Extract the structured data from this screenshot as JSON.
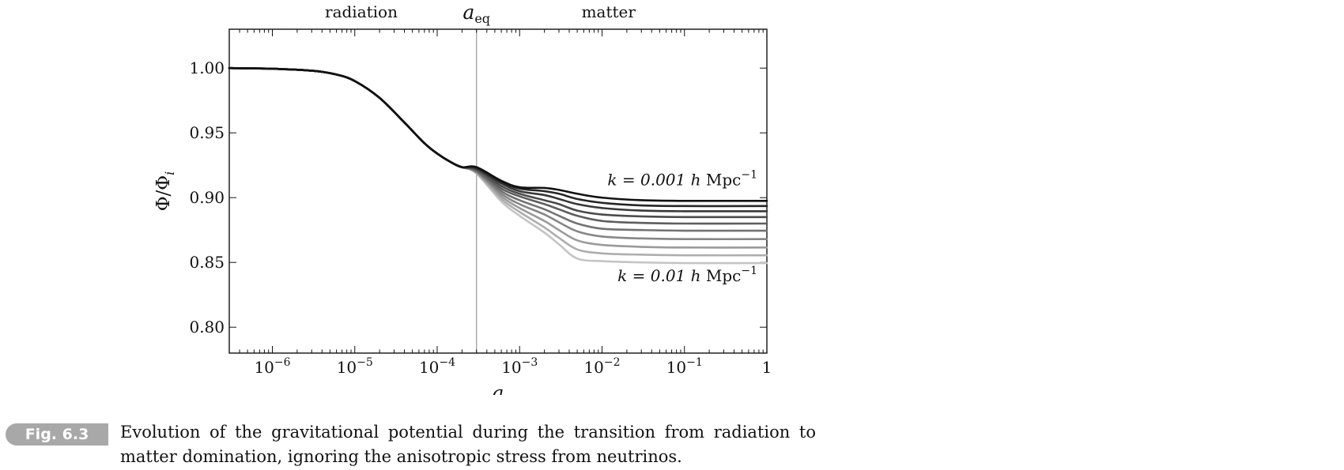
{
  "chart_data": {
    "type": "line",
    "x_scale": "log",
    "xlim": [
      3e-07,
      1
    ],
    "ylim": [
      0.78,
      1.03
    ],
    "xlabel": "a",
    "ylabel": "Φ/Φ_i",
    "x_ticks": [
      {
        "value": 1e-06,
        "base": "10",
        "exp": "−6"
      },
      {
        "value": 1e-05,
        "base": "10",
        "exp": "−5"
      },
      {
        "value": 0.0001,
        "base": "10",
        "exp": "−4"
      },
      {
        "value": 0.001,
        "base": "10",
        "exp": "−3"
      },
      {
        "value": 0.01,
        "base": "10",
        "exp": "−2"
      },
      {
        "value": 0.1,
        "base": "10",
        "exp": "−1"
      },
      {
        "value": 1,
        "base": "1",
        "exp": ""
      }
    ],
    "y_ticks": [
      {
        "value": 0.8,
        "label": "0.80"
      },
      {
        "value": 0.85,
        "label": "0.85"
      },
      {
        "value": 0.9,
        "label": "0.90"
      },
      {
        "value": 0.95,
        "label": "0.95"
      },
      {
        "value": 1.0,
        "label": "1.00"
      }
    ],
    "top_labels": {
      "radiation": {
        "text": "radiation",
        "x": 1.2e-05
      },
      "matter": {
        "text": "matter",
        "x": 0.012
      },
      "a_eq": {
        "base": "a",
        "sub": "eq",
        "x": 0.0003
      }
    },
    "vertical_line": {
      "x": 0.0003,
      "color": "#9a9a9a"
    },
    "annotations": {
      "top": {
        "lhs": "k = 0.001 ",
        "h": "h",
        "unit": "Mpc",
        "exp": "−1",
        "x": 0.11,
        "y": 0.9095
      },
      "bottom": {
        "lhs": "k = 0.01 ",
        "h": "h",
        "unit": "Mpc",
        "exp": "−1",
        "x": 0.11,
        "y": 0.8355
      }
    },
    "shared_curve": {
      "x": [
        3e-07,
        1e-06,
        3e-06,
        6e-06,
        1e-05,
        2e-05,
        4e-05,
        7e-05,
        0.0001,
        0.00015,
        0.0002,
        0.0003
      ],
      "y": [
        1.0,
        0.9995,
        0.998,
        0.995,
        0.99,
        0.977,
        0.958,
        0.942,
        0.934,
        0.927,
        0.9235,
        0.92
      ]
    },
    "series": [
      {
        "color": "#111111",
        "x": [
          0.0003,
          0.0006,
          0.001,
          0.002,
          0.003,
          0.005,
          0.01,
          0.03,
          0.1,
          1
        ],
        "y": [
          0.9235,
          0.913,
          0.908,
          0.9075,
          0.906,
          0.903,
          0.9,
          0.898,
          0.8975,
          0.8975
        ]
      },
      {
        "color": "#262626",
        "x": [
          0.0003,
          0.0006,
          0.001,
          0.002,
          0.003,
          0.005,
          0.01,
          0.03,
          0.1,
          1
        ],
        "y": [
          0.923,
          0.912,
          0.907,
          0.905,
          0.903,
          0.899,
          0.896,
          0.894,
          0.8935,
          0.8935
        ]
      },
      {
        "color": "#383838",
        "x": [
          0.0003,
          0.0006,
          0.001,
          0.002,
          0.003,
          0.005,
          0.01,
          0.03,
          0.1,
          1
        ],
        "y": [
          0.9225,
          0.911,
          0.905,
          0.902,
          0.899,
          0.895,
          0.892,
          0.89,
          0.8895,
          0.8895
        ]
      },
      {
        "color": "#4b4b4b",
        "x": [
          0.0003,
          0.0006,
          0.001,
          0.002,
          0.003,
          0.005,
          0.01,
          0.03,
          0.1,
          1
        ],
        "y": [
          0.922,
          0.909,
          0.903,
          0.898,
          0.895,
          0.89,
          0.887,
          0.8855,
          0.885,
          0.885
        ]
      },
      {
        "color": "#5e5e5e",
        "x": [
          0.0003,
          0.0006,
          0.001,
          0.002,
          0.003,
          0.005,
          0.01,
          0.03,
          0.1,
          1
        ],
        "y": [
          0.921,
          0.907,
          0.901,
          0.895,
          0.891,
          0.886,
          0.882,
          0.8805,
          0.88,
          0.88
        ]
      },
      {
        "color": "#727272",
        "x": [
          0.0003,
          0.0006,
          0.001,
          0.002,
          0.003,
          0.005,
          0.01,
          0.03,
          0.1,
          1
        ],
        "y": [
          0.9205,
          0.905,
          0.898,
          0.891,
          0.886,
          0.88,
          0.876,
          0.875,
          0.8745,
          0.8745
        ]
      },
      {
        "color": "#868686",
        "x": [
          0.0003,
          0.0006,
          0.001,
          0.002,
          0.003,
          0.005,
          0.01,
          0.03,
          0.1,
          1
        ],
        "y": [
          0.92,
          0.903,
          0.895,
          0.887,
          0.881,
          0.874,
          0.87,
          0.8685,
          0.868,
          0.868
        ]
      },
      {
        "color": "#9a9a9a",
        "x": [
          0.0003,
          0.0006,
          0.001,
          0.002,
          0.003,
          0.005,
          0.01,
          0.03,
          0.1,
          1
        ],
        "y": [
          0.9195,
          0.901,
          0.892,
          0.882,
          0.875,
          0.867,
          0.8635,
          0.862,
          0.8615,
          0.8615
        ]
      },
      {
        "color": "#aeaeae",
        "x": [
          0.0003,
          0.0006,
          0.001,
          0.002,
          0.003,
          0.005,
          0.01,
          0.03,
          0.1,
          1
        ],
        "y": [
          0.919,
          0.899,
          0.889,
          0.877,
          0.869,
          0.86,
          0.857,
          0.856,
          0.8555,
          0.8555
        ]
      },
      {
        "color": "#c4c4c4",
        "x": [
          0.0003,
          0.0006,
          0.001,
          0.002,
          0.003,
          0.005,
          0.01,
          0.03,
          0.1,
          1
        ],
        "y": [
          0.9185,
          0.897,
          0.886,
          0.873,
          0.864,
          0.853,
          0.851,
          0.85,
          0.8495,
          0.8495
        ]
      }
    ]
  },
  "caption": {
    "label": "Fig. 6.3",
    "text": "Evolution of the gravitational potential during the transition from radiation to matter domination, ignoring the anisotropic stress from neutrinos."
  }
}
